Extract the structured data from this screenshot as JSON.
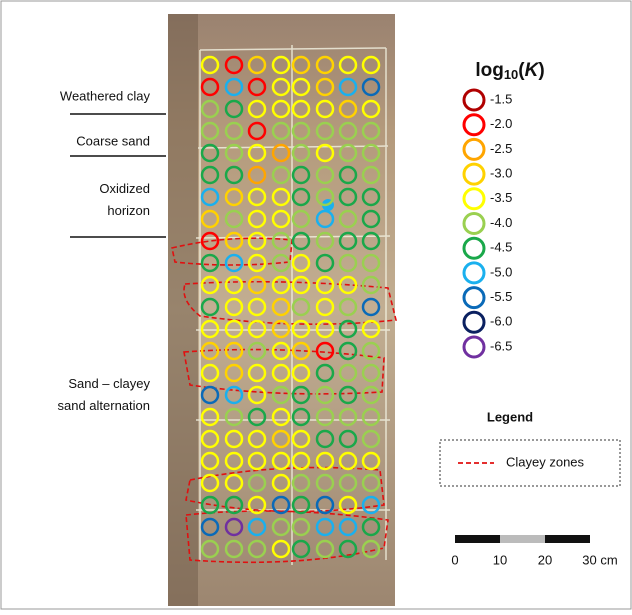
{
  "profile_labels": [
    "Weathered clay",
    "Coarse sand",
    "Oxidized horizon",
    "Sand – clayey sand alternation"
  ],
  "scale": {
    "title": {
      "base": "log",
      "sub": "10",
      "open": "(",
      "var": "K",
      "close": ")"
    },
    "items": [
      {
        "value": -1.5,
        "label": "-1.5",
        "color": "#b00000"
      },
      {
        "value": -2,
        "label": "-2.0",
        "color": "#ff0000"
      },
      {
        "value": -2.5,
        "label": "-2.5",
        "color": "#ffa500"
      },
      {
        "value": -3,
        "label": "-3.0",
        "color": "#ffd200"
      },
      {
        "value": -3.5,
        "label": "-3.5",
        "color": "#ffff00"
      },
      {
        "value": -4,
        "label": "-4.0",
        "color": "#9ad050"
      },
      {
        "value": -4.5,
        "label": "-4.5",
        "color": "#1aa84a"
      },
      {
        "value": -5,
        "label": "-5.0",
        "color": "#1ab0ee"
      },
      {
        "value": -5.5,
        "label": "-5.5",
        "color": "#0a6ab8"
      },
      {
        "value": -6,
        "label": "-6.0",
        "color": "#0a2060"
      },
      {
        "value": -6.5,
        "label": "-6.5",
        "color": "#7030a0"
      }
    ]
  },
  "legend": {
    "title": "Legend",
    "item": "Clayey zones"
  },
  "scale_bar": {
    "ticks": [
      0,
      10,
      20,
      {
        "value": 30,
        "label": "30 cm"
      }
    ]
  },
  "kgrid": {
    "rows": [
      [
        -3.5,
        -2,
        -3,
        -3.5,
        -3,
        -3,
        -3.5,
        -3.5
      ],
      [
        -2,
        -5,
        -2,
        -3.5,
        -3.5,
        -3,
        -5,
        -5.5
      ],
      [
        -4,
        -4.5,
        -3.5,
        -3.5,
        -3.5,
        -3.5,
        -3,
        -3.5
      ],
      [
        -4,
        -4,
        -2,
        -4,
        -4,
        -4,
        -4,
        -4
      ],
      [
        -4.5,
        -4,
        -3.5,
        -2.5,
        -4,
        -3.5,
        -4,
        -4
      ],
      [
        -4.5,
        -4.5,
        -2.5,
        -4,
        -4.5,
        -4,
        -4.5,
        -4
      ],
      [
        -5,
        -3,
        -3.5,
        -3.5,
        -4.5,
        -4,
        -4.5,
        -4.5
      ],
      [
        -3,
        -4,
        -3.5,
        -3.5,
        -4,
        -5,
        -4,
        -4.5
      ],
      [
        -2,
        -3,
        -3.5,
        -4,
        -4.5,
        -4,
        -4.5,
        -4.5
      ],
      [
        -4.5,
        -5,
        -3.5,
        -4,
        -3.5,
        -4.5,
        -4,
        -4
      ],
      [
        -3.5,
        -3.5,
        -3,
        -3.5,
        -3.5,
        -3.5,
        -3.5,
        -4
      ],
      [
        -4.5,
        -3.5,
        -3.5,
        -3,
        -4,
        -3.5,
        -4,
        -5.5
      ],
      [
        -3.5,
        -3.5,
        -3.5,
        -3,
        -3.5,
        -3.5,
        -4.5,
        -3.5
      ],
      [
        -3,
        -3,
        -4,
        -3.5,
        -3,
        -2,
        -4.5,
        -4
      ],
      [
        -3.5,
        -3,
        -3.5,
        -3.5,
        -3.5,
        -4.5,
        -4,
        -4
      ],
      [
        -5.5,
        -5,
        -3.5,
        -4,
        -4.5,
        -4,
        -4.5,
        -4
      ],
      [
        -3.5,
        -4,
        -4.5,
        -3.5,
        -4.5,
        -4,
        -4,
        -4
      ],
      [
        -3.5,
        -3.5,
        -3.5,
        -3,
        -3.5,
        -4.5,
        -4.5,
        -4
      ],
      [
        -3.5,
        -3.5,
        -3.5,
        -3.5,
        -3.5,
        -3.5,
        -3.5,
        -3.5
      ],
      [
        -3.5,
        -3.5,
        -4,
        -3.5,
        -4,
        -4,
        -4,
        -4
      ],
      [
        -4.5,
        -4.5,
        -3.5,
        -5.5,
        -4.5,
        -5.5,
        -3.5,
        -5
      ],
      [
        -5.5,
        -6.5,
        -5,
        -4,
        -4,
        -5,
        -5,
        -4.5
      ],
      [
        -4,
        -4,
        -4,
        -3.5,
        -4.5,
        -4,
        -4.5,
        -4
      ]
    ]
  }
}
